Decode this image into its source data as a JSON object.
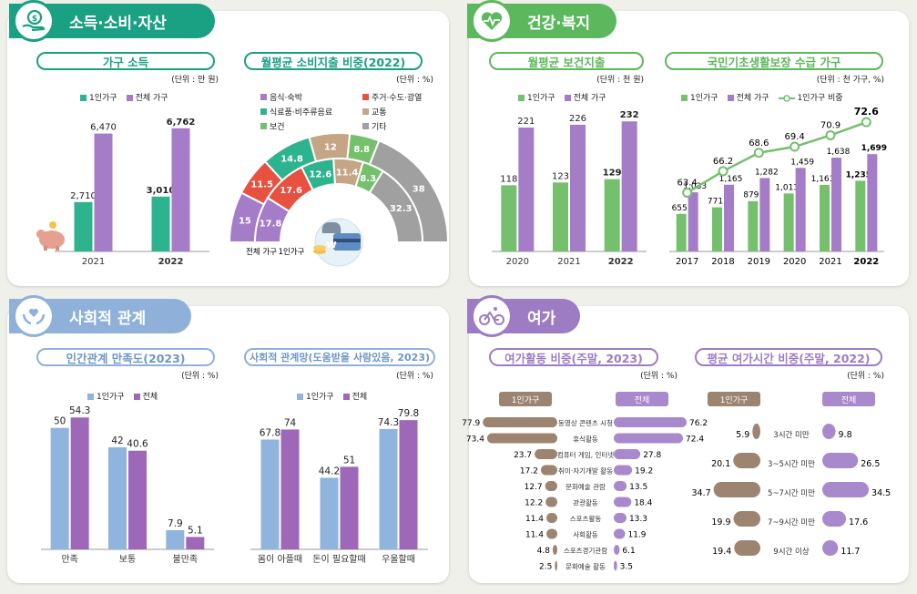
{
  "sections": {
    "income": {
      "title": "소득·소비·자산"
    },
    "health": {
      "title": "건강·복지"
    },
    "social": {
      "title": "사회적 관계"
    },
    "leisure": {
      "title": "여가"
    }
  },
  "colors": {
    "green_single": "#2db48e",
    "purple_total": "#a57cc8",
    "health_green": "#74c06d",
    "blue_single": "#8fb4de",
    "pink_total": "#9f67b8",
    "brown": "#9c8471",
    "leisure_purple": "#a88acc"
  },
  "chart_data": [
    {
      "id": "household_income",
      "type": "bar",
      "title": "가구 소득",
      "unit": "(단위 : 만 원)",
      "categories": [
        "2021",
        "2022"
      ],
      "series": [
        {
          "name": "1인가구",
          "values": [
            2710,
            3010
          ],
          "labels": [
            "2,710",
            "3,010"
          ]
        },
        {
          "name": "전체 가구",
          "values": [
            6470,
            6762
          ],
          "labels": [
            "6,470",
            "6,762"
          ]
        }
      ],
      "ylim": [
        0,
        7500
      ]
    },
    {
      "id": "consumption_share",
      "type": "pie",
      "title": "월평균 소비지출 비중(2022)",
      "unit": "(단위 : %)",
      "legend": [
        "음식·숙박",
        "주거·수도·광열",
        "식료품·비주류음료",
        "교통",
        "보건",
        "기타"
      ],
      "legend_colors": [
        "#a57cc8",
        "#e8503f",
        "#2db48e",
        "#c4a586",
        "#74c06d",
        "#a0a0a0"
      ],
      "series": [
        {
          "name": "전체 가구",
          "values": [
            15.0,
            11.5,
            14.8,
            12.0,
            8.8,
            38.0
          ]
        },
        {
          "name": "1인가구",
          "values": [
            17.8,
            17.6,
            12.6,
            11.4,
            8.3,
            32.3
          ]
        }
      ],
      "ring_labels": [
        "전체 가구",
        "1인가구"
      ]
    },
    {
      "id": "health_spending",
      "type": "bar",
      "title": "월평균 보건지출",
      "unit": "(단위 : 천 원)",
      "categories": [
        "2020",
        "2021",
        "2022"
      ],
      "series": [
        {
          "name": "1인가구",
          "values": [
            118,
            123,
            129
          ]
        },
        {
          "name": "전체 가구",
          "values": [
            221,
            226,
            232
          ]
        }
      ],
      "ylim": [
        0,
        260
      ]
    },
    {
      "id": "basic_livelihood",
      "type": "bar",
      "title": "국민기초생활보장 수급 가구",
      "unit": "(단위 : 천 가구, %)",
      "categories": [
        "2017",
        "2018",
        "2019",
        "2020",
        "2021",
        "2022"
      ],
      "series": [
        {
          "name": "1인가구",
          "values": [
            655,
            771,
            879,
            1013,
            1161,
            1235
          ],
          "labels": [
            "655",
            "771",
            "879",
            "1,013",
            "1,161",
            "1,235"
          ]
        },
        {
          "name": "전체 가구",
          "values": [
            1033,
            1165,
            1282,
            1459,
            1638,
            1699
          ],
          "labels": [
            "1,033",
            "1,165",
            "1,282",
            "1,459",
            "1,638",
            "1,699"
          ]
        },
        {
          "name": "1인가구 비중",
          "values": [
            63.4,
            66.2,
            68.6,
            69.4,
            70.9,
            72.6
          ]
        }
      ]
    },
    {
      "id": "relationship_satisfaction",
      "type": "bar",
      "title": "인간관계 만족도(2023)",
      "unit": "(단위 : %)",
      "categories": [
        "만족",
        "보통",
        "불만족"
      ],
      "series": [
        {
          "name": "1인가구",
          "values": [
            50.0,
            42.0,
            7.9
          ]
        },
        {
          "name": "전체",
          "values": [
            54.3,
            40.6,
            5.1
          ]
        }
      ],
      "ylim": [
        0,
        60
      ]
    },
    {
      "id": "social_network",
      "type": "bar",
      "title": "사회적 관계망(도움받을 사람있음, 2023)",
      "unit": "(단위 : %)",
      "categories": [
        "몸이 아플때",
        "돈이 필요할때",
        "우울할때"
      ],
      "series": [
        {
          "name": "1인가구",
          "values": [
            67.8,
            44.2,
            74.3
          ]
        },
        {
          "name": "전체",
          "values": [
            74.0,
            51.0,
            79.8
          ]
        }
      ],
      "ylim": [
        0,
        90
      ]
    },
    {
      "id": "leisure_activity",
      "type": "bar",
      "title": "여가활동 비중(주말, 2023)",
      "unit": "(단위 : %)",
      "left_header": "1인가구",
      "right_header": "전체",
      "categories": [
        "동영상 콘텐츠 시청",
        "휴식활동",
        "컴퓨터 게임, 인터넷",
        "취미·자기개발 활동",
        "문화예술 관람",
        "관광활동",
        "스포츠활동",
        "사회활동",
        "스포츠경기관람",
        "문화예술 활동"
      ],
      "series": [
        {
          "name": "1인가구",
          "values": [
            77.9,
            73.4,
            23.7,
            17.2,
            12.7,
            12.2,
            11.4,
            11.4,
            4.8,
            2.5
          ]
        },
        {
          "name": "전체",
          "values": [
            76.2,
            72.4,
            27.8,
            19.2,
            13.5,
            18.4,
            13.3,
            11.9,
            6.1,
            3.5
          ]
        }
      ]
    },
    {
      "id": "leisure_time",
      "type": "bar",
      "title": "평균 여가시간 비중(주말, 2022)",
      "unit": "(단위 : %)",
      "left_header": "1인가구",
      "right_header": "전체",
      "categories": [
        "3시간 미만",
        "3~5시간 미만",
        "5~7시간 미만",
        "7~9시간 미만",
        "9시간 이상"
      ],
      "series": [
        {
          "name": "1인가구",
          "values": [
            5.9,
            20.1,
            34.7,
            19.9,
            19.4
          ]
        },
        {
          "name": "전체",
          "values": [
            9.8,
            26.5,
            34.5,
            17.6,
            11.7
          ]
        }
      ]
    }
  ]
}
